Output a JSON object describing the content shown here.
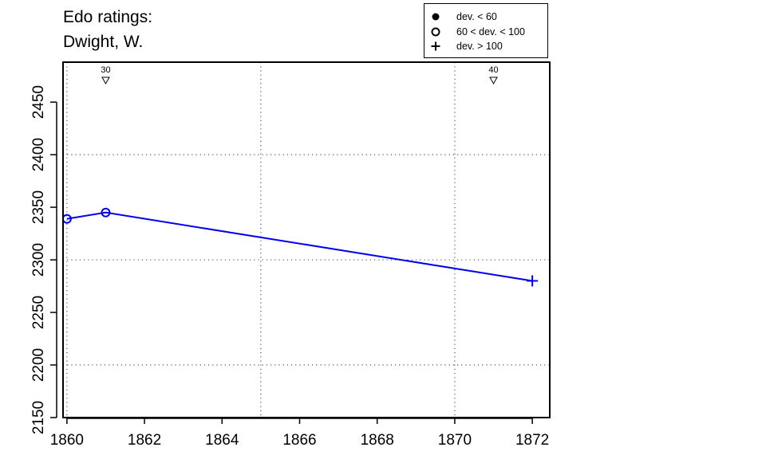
{
  "chart_data": {
    "type": "line",
    "title_lines": [
      "Edo ratings:",
      "Dwight, W."
    ],
    "xlabel": "",
    "ylabel": "",
    "xlim": [
      1859.9,
      1872.45
    ],
    "ylim": [
      2150,
      2488
    ],
    "x_ticks": [
      1860,
      1862,
      1864,
      1866,
      1868,
      1870,
      1872
    ],
    "y_ticks": [
      2150,
      2200,
      2250,
      2300,
      2350,
      2400,
      2450
    ],
    "grid": {
      "x": [
        1860,
        1865,
        1870
      ],
      "y": [
        2200,
        2300,
        2400
      ],
      "style": "dotted"
    },
    "series": [
      {
        "color": "#0000ee",
        "points": [
          {
            "x": 1860,
            "y": 2339,
            "marker": "open-circle"
          },
          {
            "x": 1861,
            "y": 2345,
            "marker": "open-circle"
          },
          {
            "x": 1872,
            "y": 2280,
            "marker": "plus"
          }
        ]
      }
    ],
    "annotations": [
      {
        "x": 1861,
        "label": "30",
        "marker": "down-triangle"
      },
      {
        "x": 1871,
        "label": "40",
        "marker": "down-triangle"
      }
    ],
    "legend": {
      "position": "top-right",
      "entries": [
        {
          "symbol": "filled-circle",
          "label": "dev. < 60"
        },
        {
          "symbol": "open-circle",
          "label": "60 < dev. < 100"
        },
        {
          "symbol": "plus",
          "label": "dev. > 100"
        }
      ]
    }
  }
}
